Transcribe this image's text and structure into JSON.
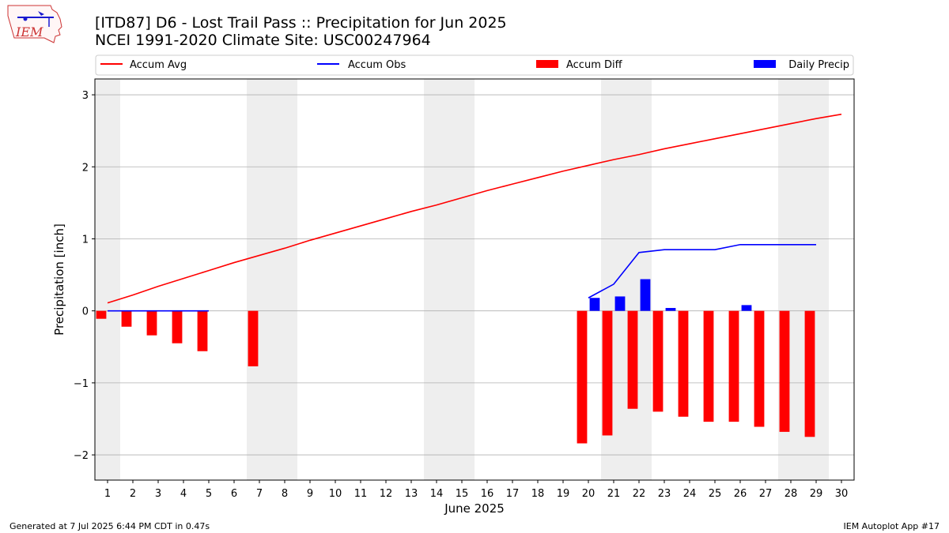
{
  "header": {
    "title_line1": "[ITD87] D6 - Lost Trail Pass  :: Precipitation for Jun 2025",
    "title_line2": "NCEI 1991-2020 Climate Site: USC00247964",
    "logo_text": "IEM"
  },
  "footer": {
    "left": "Generated at 7 Jul 2025 6:44 PM CDT in 0.47s",
    "right": "IEM Autoplot App #17"
  },
  "chart_data": {
    "type": "bar",
    "xlabel": "June 2025",
    "ylabel": "Precipitation [inch]",
    "xlim": [
      0.5,
      30.5
    ],
    "ylim": [
      -2.35,
      3.22
    ],
    "yticks": [
      -2,
      -1,
      0,
      1,
      2,
      3
    ],
    "ytick_labels": [
      "−2",
      "−1",
      "0",
      "1",
      "2",
      "3"
    ],
    "xticks": [
      1,
      2,
      3,
      4,
      5,
      6,
      7,
      8,
      9,
      10,
      11,
      12,
      13,
      14,
      15,
      16,
      17,
      18,
      19,
      20,
      21,
      22,
      23,
      24,
      25,
      26,
      27,
      28,
      29,
      30
    ],
    "grid": "horizontal",
    "weekend_shading": [
      [
        0.5,
        1.5
      ],
      [
        6.5,
        8.5
      ],
      [
        13.5,
        15.5
      ],
      [
        20.5,
        22.5
      ],
      [
        27.5,
        29.5
      ]
    ],
    "shade_color": "#eeeeee",
    "legend": {
      "placement": "top",
      "entries": [
        {
          "label": "Accum Avg",
          "kind": "line",
          "color": "#ff0000"
        },
        {
          "label": "Accum Obs",
          "kind": "line",
          "color": "#0000ff"
        },
        {
          "label": "Accum Diff",
          "kind": "bar",
          "color": "#ff0000"
        },
        {
          "label": "Daily Precip",
          "kind": "bar",
          "color": "#0000ff"
        }
      ]
    },
    "series": [
      {
        "name": "Accum Avg",
        "kind": "line",
        "color": "#ff0000",
        "x": [
          1,
          2,
          3,
          4,
          5,
          6,
          7,
          8,
          9,
          10,
          11,
          12,
          13,
          14,
          15,
          16,
          17,
          18,
          19,
          20,
          21,
          22,
          23,
          24,
          25,
          26,
          27,
          28,
          29,
          30
        ],
        "values": [
          0.11,
          0.22,
          0.34,
          0.45,
          0.56,
          0.67,
          0.77,
          0.87,
          0.98,
          1.08,
          1.18,
          1.28,
          1.38,
          1.47,
          1.57,
          1.67,
          1.76,
          1.85,
          1.94,
          2.02,
          2.1,
          2.17,
          2.25,
          2.32,
          2.39,
          2.46,
          2.53,
          2.6,
          2.67,
          2.73
        ]
      },
      {
        "name": "Accum Obs",
        "kind": "line",
        "color": "#0000ff",
        "segments": [
          {
            "x": [
              1,
              2,
              3,
              4,
              5
            ],
            "values": [
              0.0,
              0.0,
              0.0,
              0.0,
              0.0
            ]
          },
          {
            "x": [
              20,
              21,
              22,
              23,
              24,
              25,
              26,
              27,
              28,
              29
            ],
            "values": [
              0.18,
              0.37,
              0.81,
              0.85,
              0.85,
              0.85,
              0.92,
              0.92,
              0.92,
              0.92
            ]
          }
        ]
      },
      {
        "name": "Accum Diff",
        "kind": "bar",
        "color": "#ff0000",
        "x": [
          1,
          2,
          3,
          4,
          5,
          7,
          20,
          21,
          22,
          23,
          24,
          25,
          26,
          27,
          28,
          29
        ],
        "values": [
          -0.11,
          -0.22,
          -0.34,
          -0.45,
          -0.56,
          -0.77,
          -1.84,
          -1.73,
          -1.36,
          -1.4,
          -1.47,
          -1.54,
          -1.54,
          -1.61,
          -1.68,
          -1.75
        ]
      },
      {
        "name": "Daily Precip",
        "kind": "bar",
        "color": "#0000ff",
        "x": [
          20,
          21,
          22,
          23,
          26
        ],
        "values": [
          0.18,
          0.2,
          0.44,
          0.04,
          0.08
        ]
      }
    ]
  }
}
